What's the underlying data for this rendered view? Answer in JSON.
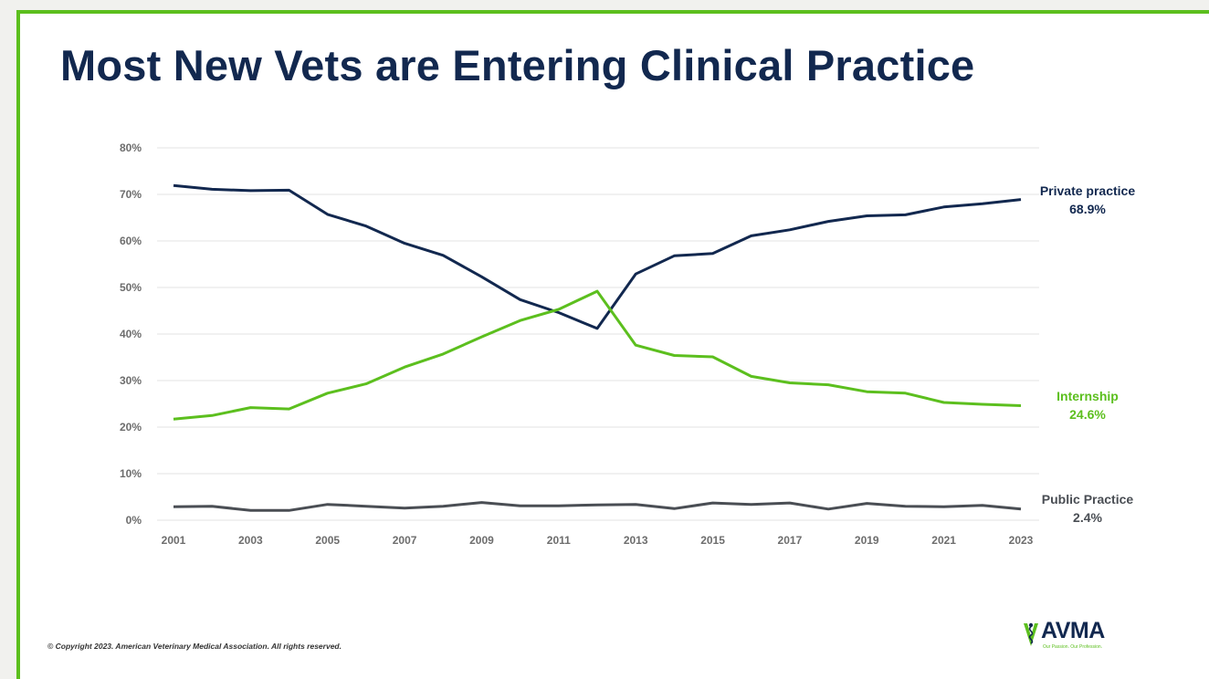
{
  "page": {
    "title": "Most New Vets are Entering Clinical Practice",
    "copyright": "© Copyright 2023. American Veterinary Medical Association. All rights reserved.",
    "logo": {
      "text": "AVMA",
      "tagline": "Our Passion. Our Profession.",
      "icon": "caduceus-icon"
    }
  },
  "chart_data": {
    "type": "line",
    "x": [
      2001,
      2002,
      2003,
      2004,
      2005,
      2006,
      2007,
      2008,
      2009,
      2010,
      2011,
      2012,
      2013,
      2014,
      2015,
      2016,
      2017,
      2018,
      2019,
      2020,
      2021,
      2022,
      2023
    ],
    "x_tick_labels": [
      "2001",
      "2003",
      "2005",
      "2007",
      "2009",
      "2011",
      "2013",
      "2015",
      "2017",
      "2019",
      "2021",
      "2023"
    ],
    "ylim": [
      0,
      80
    ],
    "y_tick_labels": [
      "0%",
      "10%",
      "20%",
      "30%",
      "40%",
      "50%",
      "60%",
      "70%",
      "80%"
    ],
    "grid": true,
    "series": [
      {
        "name": "Private practice",
        "end_value_label": "68.9%",
        "color": "#12284f",
        "values": [
          71.9,
          71.1,
          70.8,
          70.9,
          65.7,
          63.2,
          59.5,
          56.9,
          52.3,
          47.4,
          44.6,
          41.2,
          52.9,
          56.8,
          57.3,
          61.1,
          62.4,
          64.2,
          65.4,
          65.6,
          67.3,
          68.0,
          68.9
        ]
      },
      {
        "name": "Internship",
        "end_value_label": "24.6%",
        "color": "#5cbf1e",
        "values": [
          21.7,
          22.5,
          24.2,
          23.9,
          27.3,
          29.3,
          32.9,
          35.7,
          39.4,
          42.9,
          45.3,
          49.2,
          37.6,
          35.4,
          35.1,
          30.9,
          29.5,
          29.1,
          27.6,
          27.3,
          25.3,
          24.9,
          24.6
        ]
      },
      {
        "name": "Public Practice",
        "end_value_label": "2.4%",
        "color": "#4a4e54",
        "values": [
          2.9,
          3.0,
          2.1,
          2.1,
          3.4,
          3.0,
          2.6,
          3.0,
          3.8,
          3.1,
          3.1,
          3.3,
          3.4,
          2.5,
          3.7,
          3.4,
          3.7,
          2.4,
          3.6,
          3.0,
          2.9,
          3.2,
          2.4
        ]
      }
    ]
  }
}
